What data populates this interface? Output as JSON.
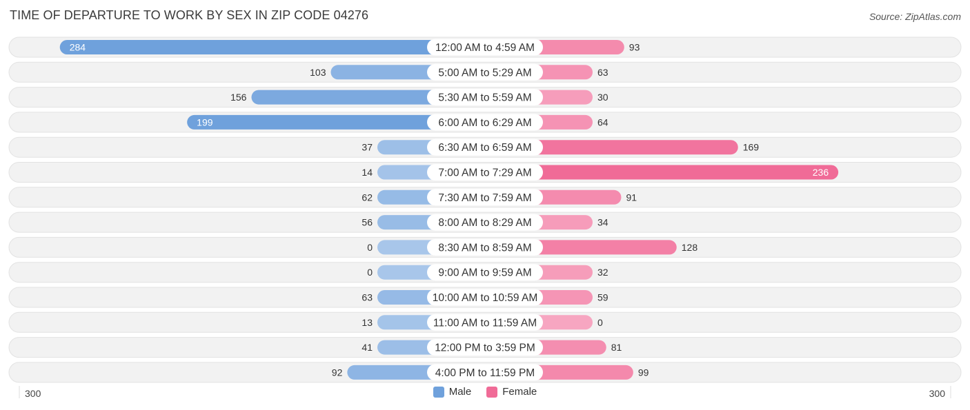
{
  "header": {
    "title": "TIME OF DEPARTURE TO WORK BY SEX IN ZIP CODE 04276",
    "source": "Source: ZipAtlas.com"
  },
  "colors": {
    "male": "#6fa1dc",
    "male_light": "#a8c6ea",
    "female": "#f06b97",
    "female_light": "#f7a6c1",
    "row_bg": "#f0f0f0"
  },
  "chart_data": {
    "type": "bar",
    "orientation": "horizontal-diverging",
    "title": "TIME OF DEPARTURE TO WORK BY SEX IN ZIP CODE 04276",
    "categories": [
      "12:00 AM to 4:59 AM",
      "5:00 AM to 5:29 AM",
      "5:30 AM to 5:59 AM",
      "6:00 AM to 6:29 AM",
      "6:30 AM to 6:59 AM",
      "7:00 AM to 7:29 AM",
      "7:30 AM to 7:59 AM",
      "8:00 AM to 8:29 AM",
      "8:30 AM to 8:59 AM",
      "9:00 AM to 9:59 AM",
      "10:00 AM to 10:59 AM",
      "11:00 AM to 11:59 AM",
      "12:00 PM to 3:59 PM",
      "4:00 PM to 11:59 PM"
    ],
    "series": [
      {
        "name": "Male",
        "values": [
          284,
          103,
          156,
          199,
          37,
          14,
          62,
          56,
          0,
          0,
          63,
          13,
          41,
          92
        ]
      },
      {
        "name": "Female",
        "values": [
          93,
          63,
          30,
          64,
          169,
          236,
          91,
          34,
          128,
          32,
          59,
          0,
          81,
          99
        ]
      }
    ],
    "axis_min_label": "300",
    "axis_max_label": "300",
    "xlim": [
      -300,
      300
    ],
    "legend": {
      "position": "bottom-center",
      "items": [
        "Male",
        "Female"
      ]
    }
  }
}
